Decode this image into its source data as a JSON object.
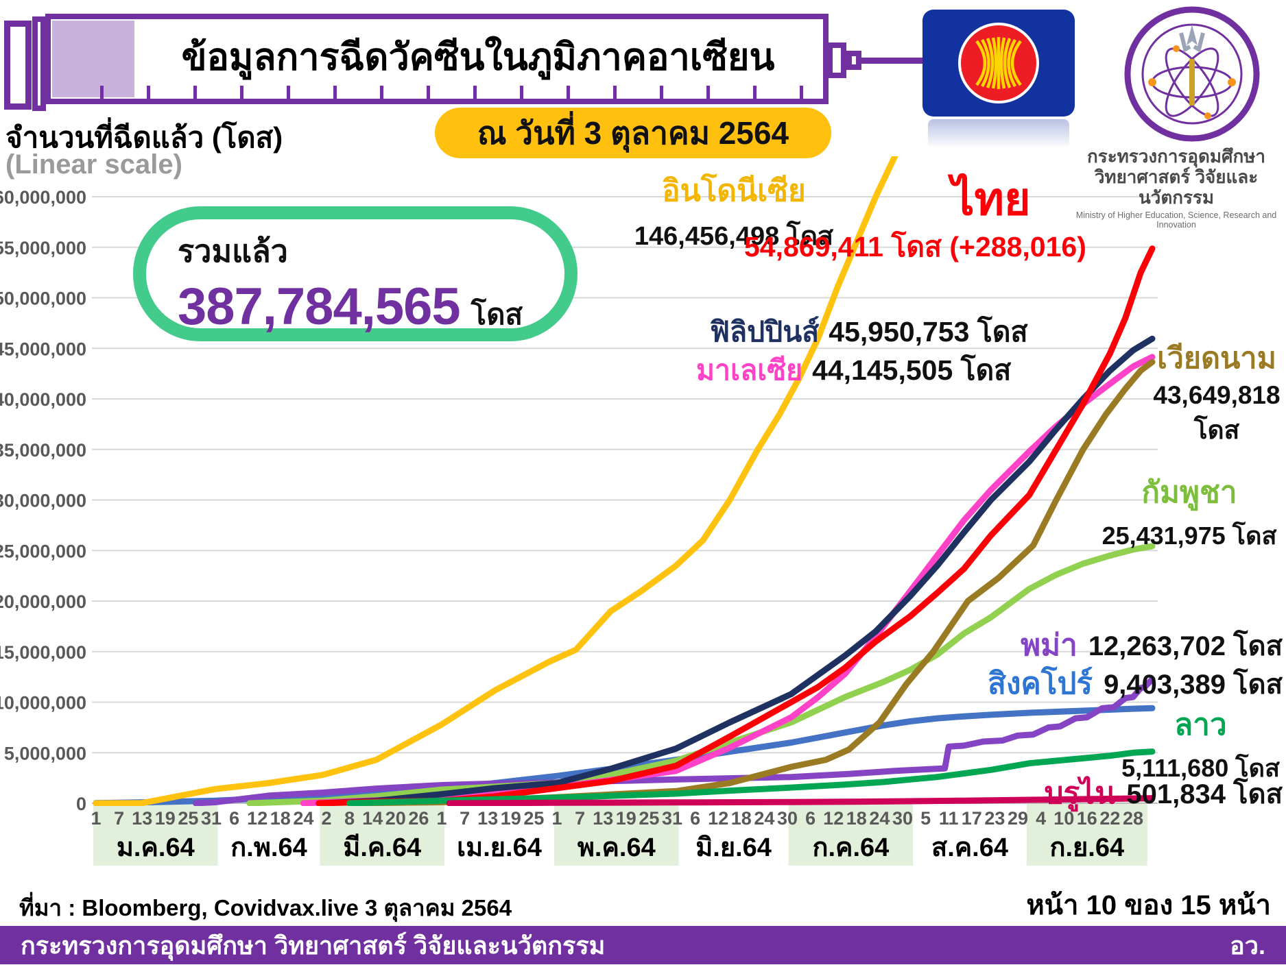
{
  "header": {
    "title": "ข้อมูลการฉีดวัคซีนในภูมิภาคอาเซียน",
    "date_badge": "ณ วันที่ 3 ตุลาคม 2564",
    "ministry_line1": "กระทรวงการอุดมศึกษา",
    "ministry_line2": "วิทยาศาสตร์ วิจัยและนวัตกรรม",
    "ministry_en": "Ministry of Higher Education, Science, Research and Innovation"
  },
  "y_caption": "จำนวนที่ฉีดแล้ว (โดส)",
  "y_subcaption": "(Linear scale)",
  "summary": {
    "label": "รวมแล้ว",
    "value": "387,784,565",
    "unit": "โดส"
  },
  "footer": {
    "source": "ที่มา : Bloomberg, Covidvax.live 3 ตุลาคม 2564",
    "page": "หน้า 10 ของ 15 หน้า",
    "bar_text": "กระทรวงการอุดมศึกษา วิทยาศาสตร์ วิจัยและนวัตกรรม",
    "bar_abbr": "อว."
  },
  "colors": {
    "accent_purple": "#7030A0",
    "badge_yellow": "#FFC010",
    "total_box_green": "#43CB8C",
    "month_band": "#E2EFDA",
    "gridline": "#D8D8D8",
    "axis_text": "#595959"
  },
  "chart_data": {
    "type": "line",
    "title": "ข้อมูลการฉีดวัคซีนในภูมิภาคอาเซียน",
    "ylabel": "จำนวนที่ฉีดแล้ว (โดส)",
    "scale": "linear",
    "ylim": [
      0,
      60000000
    ],
    "y_tick_step": 5000000,
    "grid": true,
    "x_unit": "day index of 2021 (0 = 1 ม.ค.64)",
    "months": [
      {
        "label": "ม.ค.64",
        "start_day": 0,
        "days_in_month": 31,
        "tick_days": [
          1,
          7,
          13,
          19,
          25,
          31
        ],
        "shaded": true
      },
      {
        "label": "ก.พ.64",
        "start_day": 31,
        "days_in_month": 28,
        "tick_days": [
          6,
          12,
          18,
          24
        ],
        "shaded": false
      },
      {
        "label": "มี.ค.64",
        "start_day": 59,
        "days_in_month": 31,
        "tick_days": [
          2,
          8,
          14,
          20,
          26
        ],
        "shaded": true
      },
      {
        "label": "เม.ย.64",
        "start_day": 90,
        "days_in_month": 30,
        "tick_days": [
          1,
          7,
          13,
          19,
          25
        ],
        "shaded": false
      },
      {
        "label": "พ.ค.64",
        "start_day": 120,
        "days_in_month": 31,
        "tick_days": [
          1,
          7,
          13,
          19,
          25,
          31
        ],
        "shaded": true
      },
      {
        "label": "มิ.ย.64",
        "start_day": 151,
        "days_in_month": 30,
        "tick_days": [
          6,
          12,
          18,
          24,
          30
        ],
        "shaded": false
      },
      {
        "label": "ก.ค.64",
        "start_day": 181,
        "days_in_month": 31,
        "tick_days": [
          6,
          12,
          18,
          24,
          30
        ],
        "shaded": true
      },
      {
        "label": "ส.ค.64",
        "start_day": 212,
        "days_in_month": 31,
        "tick_days": [
          5,
          11,
          17,
          23,
          29
        ],
        "shaded": false
      },
      {
        "label": "ก.ย.64",
        "start_day": 243,
        "days_in_month": 30,
        "tick_days": [
          4,
          10,
          16,
          22,
          28
        ],
        "shaded": true
      }
    ],
    "series": [
      {
        "id": "singapore",
        "label": "สิงคโปร์",
        "value": 9403389,
        "value_label": "9,403,389 โดส",
        "color": "#4472C4",
        "points": [
          [
            0,
            20000
          ],
          [
            14,
            100000
          ],
          [
            31,
            250000
          ],
          [
            45,
            500000
          ],
          [
            59,
            750000
          ],
          [
            73,
            1050000
          ],
          [
            90,
            1400000
          ],
          [
            104,
            2000000
          ],
          [
            120,
            2700000
          ],
          [
            134,
            3400000
          ],
          [
            151,
            4300000
          ],
          [
            165,
            5100000
          ],
          [
            181,
            6000000
          ],
          [
            195,
            7000000
          ],
          [
            205,
            7700000
          ],
          [
            212,
            8100000
          ],
          [
            219,
            8400000
          ],
          [
            226,
            8600000
          ],
          [
            233,
            8750000
          ],
          [
            243,
            8950000
          ],
          [
            257,
            9150000
          ],
          [
            270,
            9350000
          ],
          [
            275,
            9403389
          ]
        ]
      },
      {
        "id": "myanmar",
        "label": "พม่า",
        "value": 12263702,
        "value_label": "12,263,702 โดส",
        "color": "#8444C4",
        "points": [
          [
            26,
            0
          ],
          [
            31,
            100000
          ],
          [
            45,
            750000
          ],
          [
            59,
            1050000
          ],
          [
            73,
            1450000
          ],
          [
            90,
            1800000
          ],
          [
            104,
            1950000
          ],
          [
            120,
            2050000
          ],
          [
            151,
            2350000
          ],
          [
            181,
            2600000
          ],
          [
            196,
            2900000
          ],
          [
            208,
            3200000
          ],
          [
            221,
            3450000
          ],
          [
            222,
            5600000
          ],
          [
            226,
            5700000
          ],
          [
            231,
            6100000
          ],
          [
            236,
            6200000
          ],
          [
            240,
            6700000
          ],
          [
            244,
            6800000
          ],
          [
            248,
            7500000
          ],
          [
            251,
            7600000
          ],
          [
            255,
            8400000
          ],
          [
            258,
            8500000
          ],
          [
            262,
            9400000
          ],
          [
            265,
            9500000
          ],
          [
            268,
            10400000
          ],
          [
            270,
            10500000
          ],
          [
            272,
            11400000
          ],
          [
            273,
            11500000
          ],
          [
            275,
            12263702
          ]
        ]
      },
      {
        "id": "cambodia",
        "label": "กัมพูชา",
        "value": 25431975,
        "value_label": "25,431,975 โดส",
        "color": "#92D050",
        "points": [
          [
            40,
            0
          ],
          [
            59,
            250000
          ],
          [
            73,
            700000
          ],
          [
            90,
            1350000
          ],
          [
            104,
            1650000
          ],
          [
            120,
            2000000
          ],
          [
            134,
            2800000
          ],
          [
            151,
            4200000
          ],
          [
            165,
            6000000
          ],
          [
            181,
            8000000
          ],
          [
            195,
            10500000
          ],
          [
            205,
            12000000
          ],
          [
            212,
            13200000
          ],
          [
            219,
            14700000
          ],
          [
            226,
            16800000
          ],
          [
            233,
            18400000
          ],
          [
            243,
            21200000
          ],
          [
            250,
            22600000
          ],
          [
            257,
            23700000
          ],
          [
            264,
            24500000
          ],
          [
            270,
            25100000
          ],
          [
            275,
            25431975
          ]
        ]
      },
      {
        "id": "malaysia",
        "label": "มาเลเซีย",
        "value": 44145505,
        "value_label": "44,145,505 โดส",
        "color": "#FF42C7",
        "points": [
          [
            54,
            0
          ],
          [
            73,
            300000
          ],
          [
            90,
            650000
          ],
          [
            104,
            1100000
          ],
          [
            120,
            1600000
          ],
          [
            134,
            2300000
          ],
          [
            151,
            3200000
          ],
          [
            165,
            5500000
          ],
          [
            181,
            8500000
          ],
          [
            188,
            10500000
          ],
          [
            195,
            12800000
          ],
          [
            203,
            16500000
          ],
          [
            212,
            21000000
          ],
          [
            219,
            24500000
          ],
          [
            226,
            28000000
          ],
          [
            233,
            31000000
          ],
          [
            243,
            34800000
          ],
          [
            250,
            37300000
          ],
          [
            257,
            39500000
          ],
          [
            264,
            41500000
          ],
          [
            270,
            43200000
          ],
          [
            275,
            44145505
          ]
        ]
      },
      {
        "id": "philippines",
        "label": "ฟิลิปปินส์",
        "value": 45950753,
        "value_label": "45,950,753 โดส",
        "color": "#1F3160",
        "points": [
          [
            59,
            0
          ],
          [
            73,
            250000
          ],
          [
            90,
            900000
          ],
          [
            104,
            1500000
          ],
          [
            120,
            2000000
          ],
          [
            134,
            3400000
          ],
          [
            151,
            5400000
          ],
          [
            165,
            8000000
          ],
          [
            181,
            10800000
          ],
          [
            195,
            14600000
          ],
          [
            203,
            17000000
          ],
          [
            212,
            20500000
          ],
          [
            219,
            23500000
          ],
          [
            226,
            26800000
          ],
          [
            233,
            30000000
          ],
          [
            243,
            33800000
          ],
          [
            250,
            37000000
          ],
          [
            257,
            40000000
          ],
          [
            264,
            42800000
          ],
          [
            270,
            44800000
          ],
          [
            275,
            45950753
          ]
        ]
      },
      {
        "id": "thailand",
        "label": "ไทย",
        "value": 54869411,
        "value_label": "54,869,411 โดส (+288,016)",
        "color": "#FB0007",
        "points": [
          [
            58,
            0
          ],
          [
            73,
            150000
          ],
          [
            90,
            250000
          ],
          [
            104,
            700000
          ],
          [
            120,
            1500000
          ],
          [
            134,
            2200000
          ],
          [
            151,
            3700000
          ],
          [
            165,
            6600000
          ],
          [
            181,
            10000000
          ],
          [
            188,
            11500000
          ],
          [
            195,
            13400000
          ],
          [
            203,
            16000000
          ],
          [
            212,
            18500000
          ],
          [
            219,
            20800000
          ],
          [
            226,
            23200000
          ],
          [
            233,
            26500000
          ],
          [
            243,
            30500000
          ],
          [
            250,
            35000000
          ],
          [
            257,
            39500000
          ],
          [
            264,
            44500000
          ],
          [
            268,
            48000000
          ],
          [
            272,
            52500000
          ],
          [
            275,
            54869411
          ]
        ]
      },
      {
        "id": "vietnam",
        "label": "เวียดนาม",
        "value": 43649818,
        "value_label": "43,649,818",
        "unit_label": "โดส",
        "color": "#9A7B24",
        "points": [
          [
            66,
            0
          ],
          [
            90,
            100000
          ],
          [
            120,
            600000
          ],
          [
            151,
            1200000
          ],
          [
            165,
            2000000
          ],
          [
            181,
            3600000
          ],
          [
            190,
            4300000
          ],
          [
            196,
            5300000
          ],
          [
            204,
            8000000
          ],
          [
            211,
            11800000
          ],
          [
            218,
            15000000
          ],
          [
            227,
            20000000
          ],
          [
            235,
            22300000
          ],
          [
            244,
            25500000
          ],
          [
            250,
            30000000
          ],
          [
            257,
            35000000
          ],
          [
            263,
            38500000
          ],
          [
            268,
            41000000
          ],
          [
            272,
            42800000
          ],
          [
            275,
            43649818
          ]
        ]
      },
      {
        "id": "laos",
        "label": "ลาว",
        "value": 5111680,
        "value_label": "5,111,680 โดส",
        "color": "#00A651",
        "points": [
          [
            66,
            0
          ],
          [
            90,
            250000
          ],
          [
            120,
            550000
          ],
          [
            151,
            950000
          ],
          [
            165,
            1250000
          ],
          [
            181,
            1550000
          ],
          [
            195,
            1850000
          ],
          [
            205,
            2100000
          ],
          [
            212,
            2350000
          ],
          [
            219,
            2600000
          ],
          [
            226,
            2950000
          ],
          [
            233,
            3300000
          ],
          [
            243,
            3950000
          ],
          [
            250,
            4200000
          ],
          [
            257,
            4450000
          ],
          [
            264,
            4700000
          ],
          [
            270,
            5000000
          ],
          [
            275,
            5111680
          ]
        ]
      },
      {
        "id": "brunei",
        "label": "บรูไน",
        "value": 501834,
        "value_label": "501,834 โดส",
        "color": "#CE0058",
        "points": [
          [
            92,
            0
          ],
          [
            120,
            50000
          ],
          [
            151,
            80000
          ],
          [
            181,
            120000
          ],
          [
            200,
            160000
          ],
          [
            212,
            200000
          ],
          [
            226,
            260000
          ],
          [
            243,
            340000
          ],
          [
            257,
            410000
          ],
          [
            267,
            460000
          ],
          [
            275,
            501834
          ]
        ]
      },
      {
        "id": "indonesia",
        "label": "อินโดนีเซีย",
        "value": 146456498,
        "value_label": "146,456,498 โดส",
        "color": "#FFC20E",
        "points": [
          [
            0,
            0
          ],
          [
            12,
            20000
          ],
          [
            31,
            1400000
          ],
          [
            45,
            2000000
          ],
          [
            59,
            2800000
          ],
          [
            73,
            4300000
          ],
          [
            90,
            7800000
          ],
          [
            104,
            11200000
          ],
          [
            118,
            14000000
          ],
          [
            125,
            15200000
          ],
          [
            134,
            19000000
          ],
          [
            142,
            21000000
          ],
          [
            151,
            23500000
          ],
          [
            158,
            26000000
          ],
          [
            165,
            30000000
          ],
          [
            172,
            34800000
          ],
          [
            178,
            38500000
          ],
          [
            183,
            42000000
          ],
          [
            188,
            46000000
          ],
          [
            193,
            51000000
          ],
          [
            198,
            55500000
          ],
          [
            203,
            60000000
          ],
          [
            208,
            64000000
          ]
        ]
      }
    ],
    "legend_position": "inline annotations next to each line"
  }
}
